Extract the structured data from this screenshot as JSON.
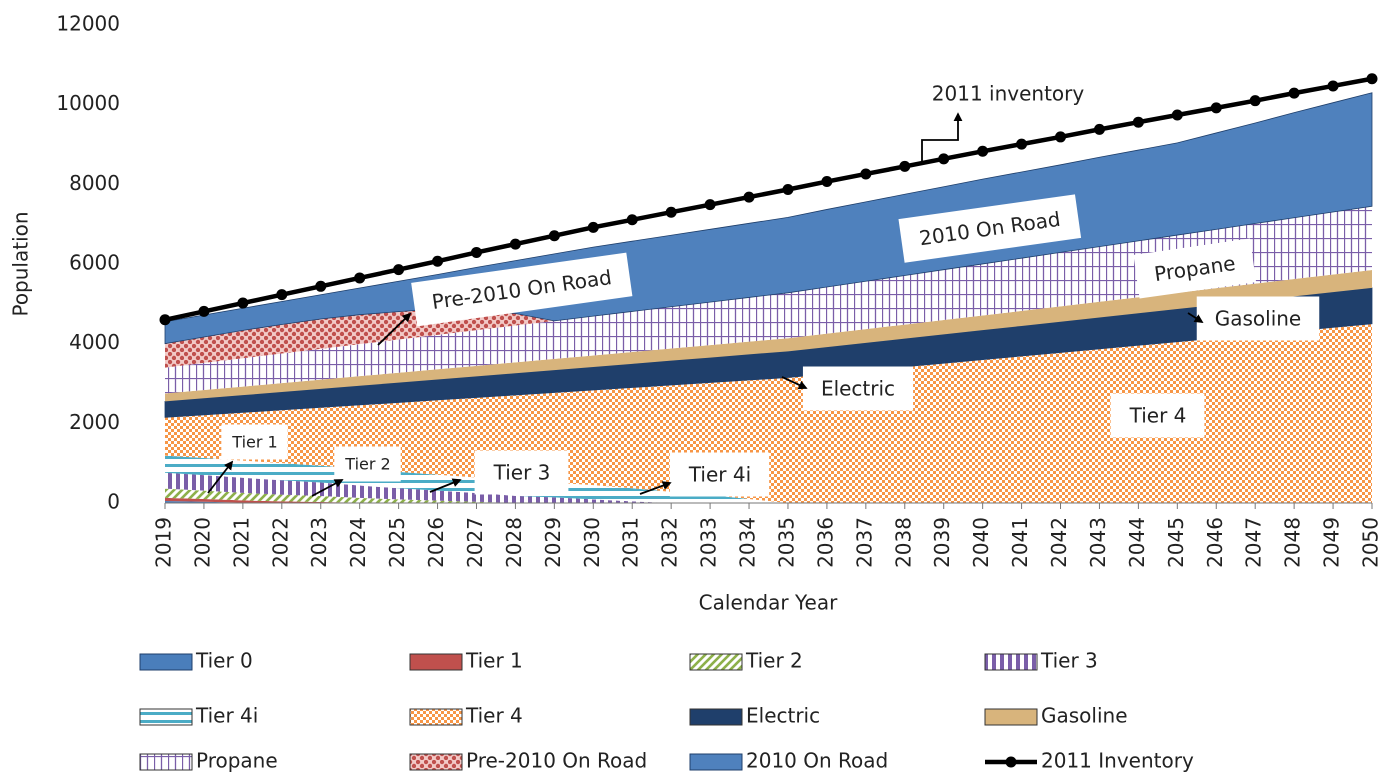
{
  "chart_data": {
    "type": "stacked_area",
    "y_label": "Population",
    "x_label": "Calendar Year",
    "categories": [
      "2019",
      "2020",
      "2021",
      "2022",
      "2023",
      "2024",
      "2025",
      "2026",
      "2027",
      "2028",
      "2029",
      "2030",
      "2031",
      "2032",
      "2033",
      "2034",
      "2035",
      "2036",
      "2037",
      "2038",
      "2039",
      "2040",
      "2041",
      "2042",
      "2043",
      "2044",
      "2045",
      "2046",
      "2047",
      "2048",
      "2049",
      "2050"
    ],
    "ylim": [
      0,
      12000
    ],
    "yticks": [
      0,
      2000,
      4000,
      6000,
      8000,
      10000,
      12000
    ],
    "grid": false,
    "series": [
      {
        "name": "Tier 0",
        "color": "#4a7ebb",
        "pattern": "solid",
        "values": [
          50,
          30,
          10,
          0,
          0,
          0,
          0,
          0,
          0,
          0,
          0,
          0,
          0,
          0,
          0,
          0,
          0,
          0,
          0,
          0,
          0,
          0,
          0,
          0,
          0,
          0,
          0,
          0,
          0,
          0,
          0,
          0
        ]
      },
      {
        "name": "Tier 1",
        "color": "#c0504d",
        "pattern": "solid",
        "values": [
          80,
          70,
          55,
          40,
          25,
          10,
          0,
          0,
          0,
          0,
          0,
          0,
          0,
          0,
          0,
          0,
          0,
          0,
          0,
          0,
          0,
          0,
          0,
          0,
          0,
          0,
          0,
          0,
          0,
          0,
          0,
          0
        ]
      },
      {
        "name": "Tier 2",
        "color": "#8db04a",
        "pattern": "diagonal",
        "values": [
          230,
          210,
          190,
          170,
          150,
          120,
          90,
          60,
          30,
          0,
          0,
          0,
          0,
          0,
          0,
          0,
          0,
          0,
          0,
          0,
          0,
          0,
          0,
          0,
          0,
          0,
          0,
          0,
          0,
          0,
          0,
          0
        ]
      },
      {
        "name": "Tier 3",
        "color": "#7a5ea8",
        "pattern": "vertical",
        "values": [
          400,
          390,
          380,
          360,
          340,
          310,
          280,
          250,
          220,
          180,
          140,
          90,
          40,
          0,
          0,
          0,
          0,
          0,
          0,
          0,
          0,
          0,
          0,
          0,
          0,
          0,
          0,
          0,
          0,
          0,
          0,
          0
        ]
      },
      {
        "name": "Tier 4i",
        "color": "#4bacc6",
        "pattern": "horizontal",
        "values": [
          430,
          430,
          430,
          430,
          420,
          420,
          410,
          400,
          390,
          380,
          370,
          360,
          330,
          280,
          200,
          100,
          0,
          0,
          0,
          0,
          0,
          0,
          0,
          0,
          0,
          0,
          0,
          0,
          0,
          0,
          0,
          0
        ]
      },
      {
        "name": "Tier 4",
        "color": "#f79646",
        "pattern": "checker",
        "values": [
          960,
          1083,
          1210,
          1338,
          1465,
          1603,
          1745,
          1878,
          2010,
          2153,
          2265,
          2388,
          2530,
          2683,
          2825,
          2988,
          3150,
          3240,
          3330,
          3420,
          3510,
          3600,
          3690,
          3780,
          3870,
          3960,
          4050,
          4140,
          4230,
          4320,
          4410,
          4500
        ]
      },
      {
        "name": "Electric",
        "color": "#1f3f6b",
        "pattern": "solid",
        "values": [
          400,
          416,
          432,
          448,
          465,
          481,
          497,
          513,
          529,
          545,
          561,
          577,
          594,
          610,
          626,
          642,
          658,
          674,
          690,
          706,
          723,
          739,
          755,
          771,
          787,
          803,
          819,
          835,
          852,
          868,
          884,
          900
        ]
      },
      {
        "name": "Gasoline",
        "color": "#d8b47c",
        "pattern": "solid",
        "values": [
          200,
          208,
          216,
          224,
          232,
          240,
          248,
          256,
          265,
          273,
          281,
          289,
          297,
          305,
          313,
          321,
          329,
          337,
          345,
          353,
          361,
          369,
          377,
          385,
          394,
          402,
          410,
          418,
          426,
          434,
          442,
          450
        ]
      },
      {
        "name": "Propane",
        "color": "#7a5ea8",
        "pattern": "grid",
        "values": [
          650,
          681,
          711,
          742,
          773,
          803,
          834,
          865,
          895,
          926,
          956,
          987,
          1018,
          1048,
          1079,
          1110,
          1140,
          1171,
          1202,
          1232,
          1263,
          1294,
          1324,
          1355,
          1385,
          1416,
          1447,
          1477,
          1508,
          1539,
          1569,
          1600
        ]
      },
      {
        "name": "Pre-2010 On Road",
        "color": "#c0504d",
        "pattern": "dots",
        "values": [
          600,
          650,
          700,
          730,
          750,
          740,
          700,
          650,
          500,
          300,
          0,
          0,
          0,
          0,
          0,
          0,
          0,
          0,
          0,
          0,
          0,
          0,
          0,
          0,
          0,
          0,
          0,
          0,
          0,
          0,
          0,
          0
        ]
      },
      {
        "name": "2010 On Road",
        "color": "#4f81bd",
        "pattern": "solid",
        "values": [
          550,
          551,
          555,
          576,
          608,
          670,
          762,
          864,
          1076,
          1327,
          1681,
          1732,
          1764,
          1796,
          1828,
          1860,
          1893,
          1948,
          1993,
          2039,
          2083,
          2128,
          2164,
          2199,
          2244,
          2279,
          2314,
          2420,
          2524,
          2639,
          2745,
          2850
        ]
      }
    ],
    "line": {
      "name": "2011 Inventory",
      "color": "#000000",
      "values": [
        4600,
        4810,
        5020,
        5230,
        5440,
        5650,
        5860,
        6070,
        6290,
        6500,
        6710,
        6920,
        7110,
        7300,
        7490,
        7680,
        7870,
        8070,
        8260,
        8450,
        8640,
        8830,
        9010,
        9190,
        9380,
        9560,
        9740,
        9920,
        10100,
        10290,
        10470,
        10650
      ]
    },
    "annotations": [
      "2011 inventory",
      "2010 On Road",
      "Pre-2010 On Road",
      "Propane",
      "Gasoline",
      "Electric",
      "Tier 4",
      "Tier 1",
      "Tier 2",
      "Tier 3",
      "Tier 4i"
    ]
  }
}
